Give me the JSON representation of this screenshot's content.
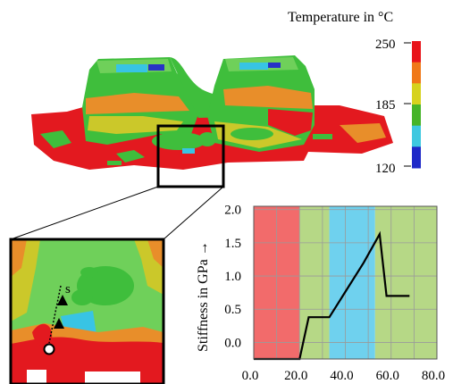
{
  "legend": {
    "title": "Temperature in °C",
    "max_label": "250",
    "mid_label": "185",
    "min_label": "120",
    "colors": [
      "#e8141a",
      "#f07818",
      "#d6d21e",
      "#46b428",
      "#3ec8e0",
      "#1e28c8"
    ]
  },
  "part_colors": {
    "red": "#e3191f",
    "orange": "#e88e2a",
    "yellow": "#cbc82a",
    "green": "#3fbe3c",
    "light_green": "#6fd05a",
    "cyan": "#38c4e4",
    "blue": "#2732c6"
  },
  "inset": {
    "path_label": "s"
  },
  "chart_data": {
    "type": "line",
    "ylabel": "Stiffness in GPa →",
    "xlim": [
      0,
      80
    ],
    "ylim": [
      -0.25,
      2.05
    ],
    "x_ticks": [
      "0.0",
      "20.0",
      "40.0",
      "60.0",
      "80.0"
    ],
    "y_ticks": [
      "0.0",
      "0.5",
      "1.0",
      "1.5",
      "2.0"
    ],
    "grid": true,
    "bands": [
      {
        "x0": 0,
        "x1": 20,
        "color": "#f26b6b"
      },
      {
        "x0": 20,
        "x1": 33,
        "color": "#b6d886"
      },
      {
        "x0": 33,
        "x1": 53,
        "color": "#6fd1ee"
      },
      {
        "x0": 53,
        "x1": 80,
        "color": "#b6d886"
      }
    ],
    "series": [
      {
        "x": [
          0,
          20,
          24,
          33,
          48,
          55,
          58,
          68
        ],
        "y": [
          -0.25,
          -0.25,
          0.38,
          0.38,
          1.2,
          1.63,
          0.7,
          0.7
        ],
        "color": "#000000"
      }
    ]
  }
}
